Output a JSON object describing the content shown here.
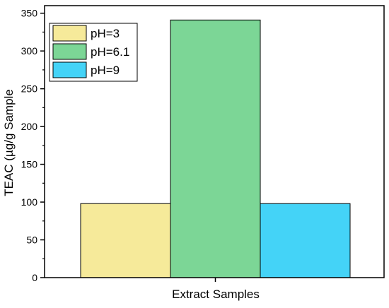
{
  "chart_data": {
    "type": "bar",
    "title": "",
    "xlabel": "Extract Samples",
    "ylabel": "TEAC (µg/g Sample",
    "ylim": [
      0,
      360
    ],
    "yticks": [
      0,
      50,
      100,
      150,
      200,
      250,
      300,
      350
    ],
    "grid": false,
    "legend_position": "top-left",
    "categories": [
      "Extract Samples"
    ],
    "series": [
      {
        "name": "pH=3",
        "values": [
          98
        ],
        "color": "#F6EA9A"
      },
      {
        "name": "pH=6.1",
        "values": [
          341
        ],
        "color": "#7CD696"
      },
      {
        "name": "pH=9",
        "values": [
          98
        ],
        "color": "#44D3F7"
      }
    ]
  }
}
